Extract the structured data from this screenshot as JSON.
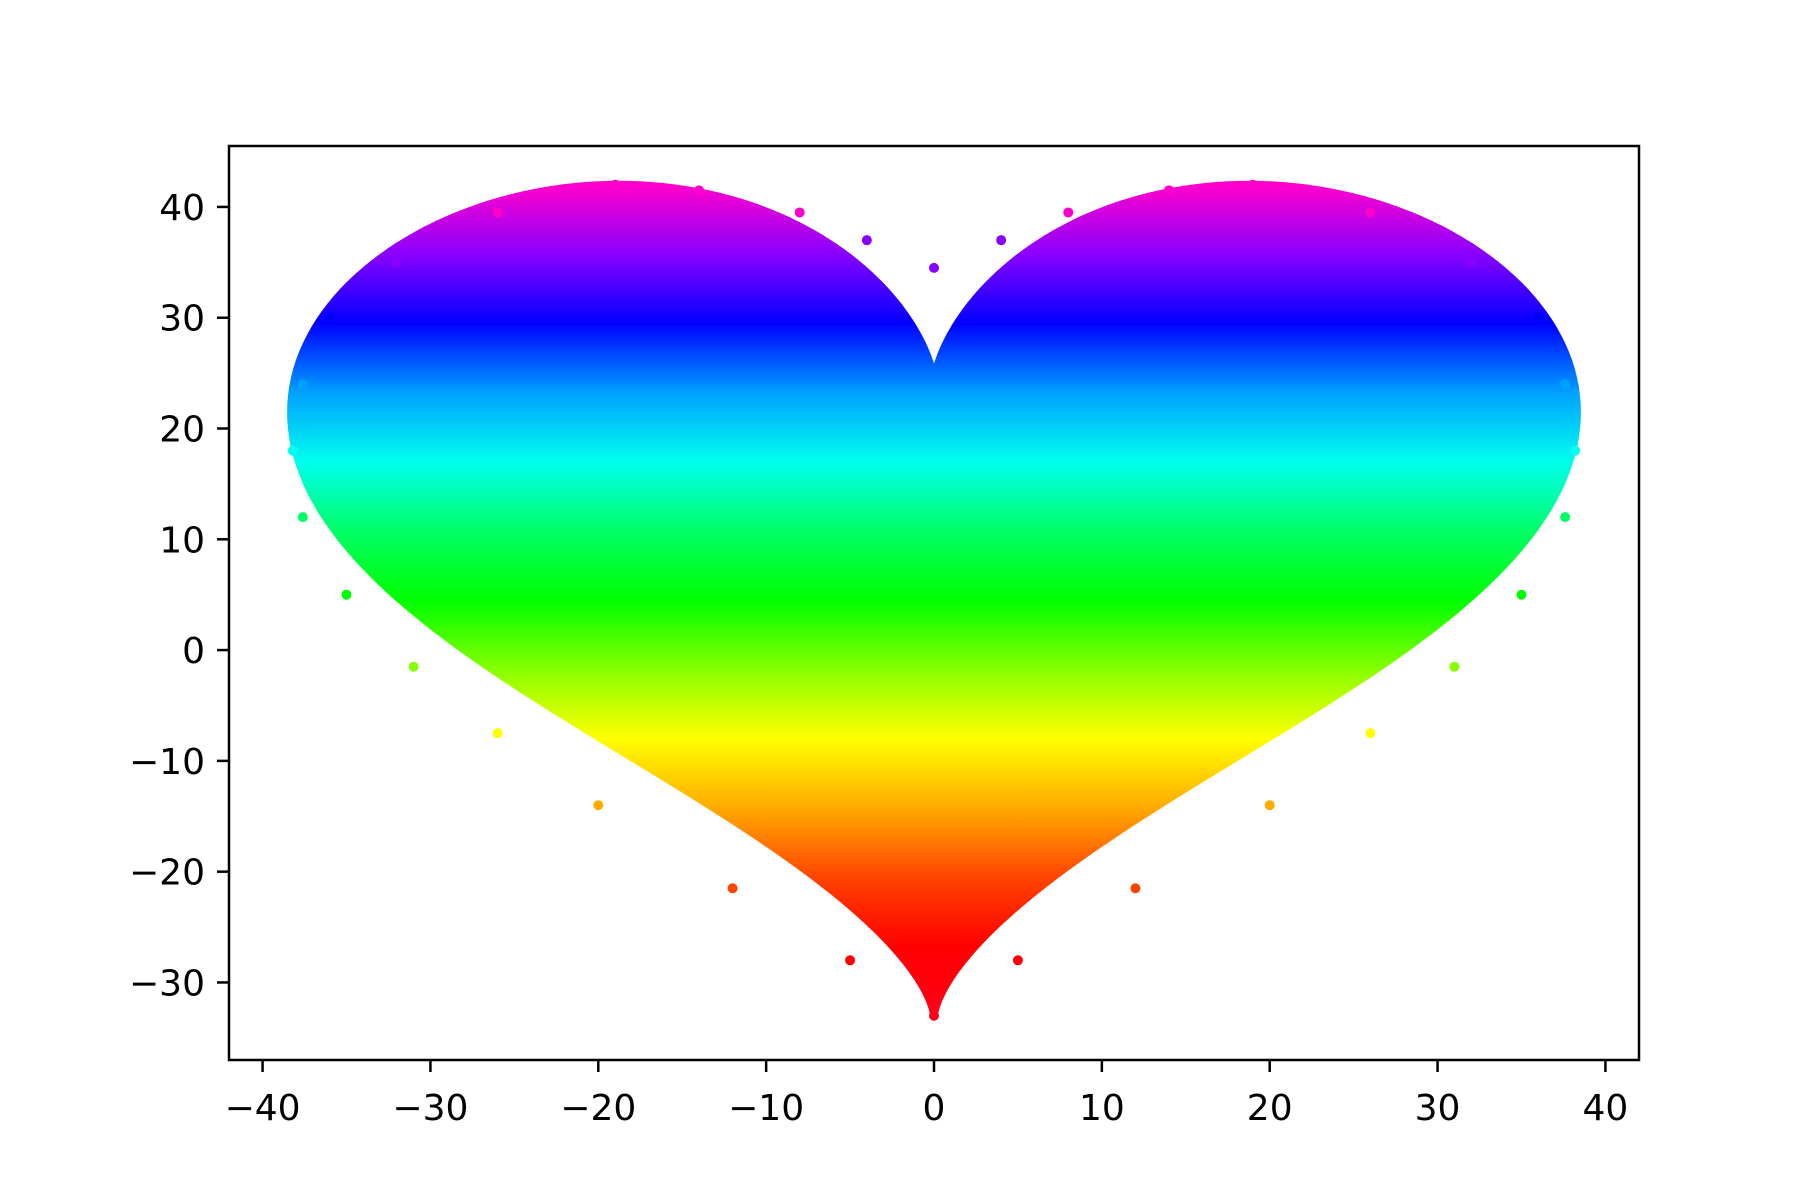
{
  "chart_data": {
    "type": "scatter",
    "title": "",
    "xlabel": "",
    "ylabel": "",
    "xlim": [
      -42,
      42
    ],
    "ylim": [
      -37,
      45.5
    ],
    "xticks": [
      {
        "value": -40,
        "label": "−40"
      },
      {
        "value": -30,
        "label": "−30"
      },
      {
        "value": -20,
        "label": "−20"
      },
      {
        "value": -10,
        "label": "−10"
      },
      {
        "value": 0,
        "label": "0"
      },
      {
        "value": 10,
        "label": "10"
      },
      {
        "value": 20,
        "label": "20"
      },
      {
        "value": 30,
        "label": "30"
      },
      {
        "value": 40,
        "label": "40"
      }
    ],
    "yticks": [
      {
        "value": -30,
        "label": "−30"
      },
      {
        "value": -20,
        "label": "−20"
      },
      {
        "value": -10,
        "label": "−10"
      },
      {
        "value": 0,
        "label": "0"
      },
      {
        "value": 10,
        "label": "10"
      },
      {
        "value": 20,
        "label": "20"
      },
      {
        "value": 30,
        "label": "30"
      },
      {
        "value": 40,
        "label": "40"
      }
    ],
    "grid": false,
    "legend": "none",
    "colormap": "hsv",
    "color_by": "y",
    "shape": "heart",
    "heart_extent": {
      "x": [
        -38.3,
        38.3
      ],
      "y": [
        -33,
        42
      ]
    },
    "series": [
      {
        "values_note": "",
        "points": [
          {
            "x": -38.2,
            "y": 18.0
          },
          {
            "x": -37.6,
            "y": 24.0
          },
          {
            "x": -36.0,
            "y": 30.0
          },
          {
            "x": -32.0,
            "y": 35.0
          },
          {
            "x": -26.0,
            "y": 39.5
          },
          {
            "x": -19.0,
            "y": 42.0
          },
          {
            "x": -14.0,
            "y": 41.5
          },
          {
            "x": -8.0,
            "y": 39.5
          },
          {
            "x": -4.0,
            "y": 37.0
          },
          {
            "x": 0.0,
            "y": 34.5
          },
          {
            "x": 4.0,
            "y": 37.0
          },
          {
            "x": 8.0,
            "y": 39.5
          },
          {
            "x": 14.0,
            "y": 41.5
          },
          {
            "x": 19.0,
            "y": 42.0
          },
          {
            "x": 26.0,
            "y": 39.5
          },
          {
            "x": 32.0,
            "y": 35.0
          },
          {
            "x": 36.0,
            "y": 30.0
          },
          {
            "x": 37.6,
            "y": 24.0
          },
          {
            "x": 38.2,
            "y": 18.0
          },
          {
            "x": 37.6,
            "y": 12.0
          },
          {
            "x": 35.0,
            "y": 5.0
          },
          {
            "x": 31.0,
            "y": -1.5
          },
          {
            "x": 26.0,
            "y": -7.5
          },
          {
            "x": 20.0,
            "y": -14.0
          },
          {
            "x": 12.0,
            "y": -21.5
          },
          {
            "x": 5.0,
            "y": -28.0
          },
          {
            "x": 0.0,
            "y": -33.0
          },
          {
            "x": -5.0,
            "y": -28.0
          },
          {
            "x": -12.0,
            "y": -21.5
          },
          {
            "x": -20.0,
            "y": -14.0
          },
          {
            "x": -26.0,
            "y": -7.5
          },
          {
            "x": -31.0,
            "y": -1.5
          },
          {
            "x": -35.0,
            "y": 5.0
          },
          {
            "x": -37.6,
            "y": 12.0
          }
        ]
      }
    ],
    "colors": {
      "axis": "#000000",
      "background": "#ffffff",
      "gradient_top_to_bottom": [
        "#ff00cc",
        "#8a00ff",
        "#0000ff",
        "#00a0ff",
        "#00ffee",
        "#00ff66",
        "#00ff00",
        "#88ff00",
        "#ffff00",
        "#ffaa00",
        "#ff4400",
        "#ff0000",
        "#ff0018"
      ]
    }
  }
}
